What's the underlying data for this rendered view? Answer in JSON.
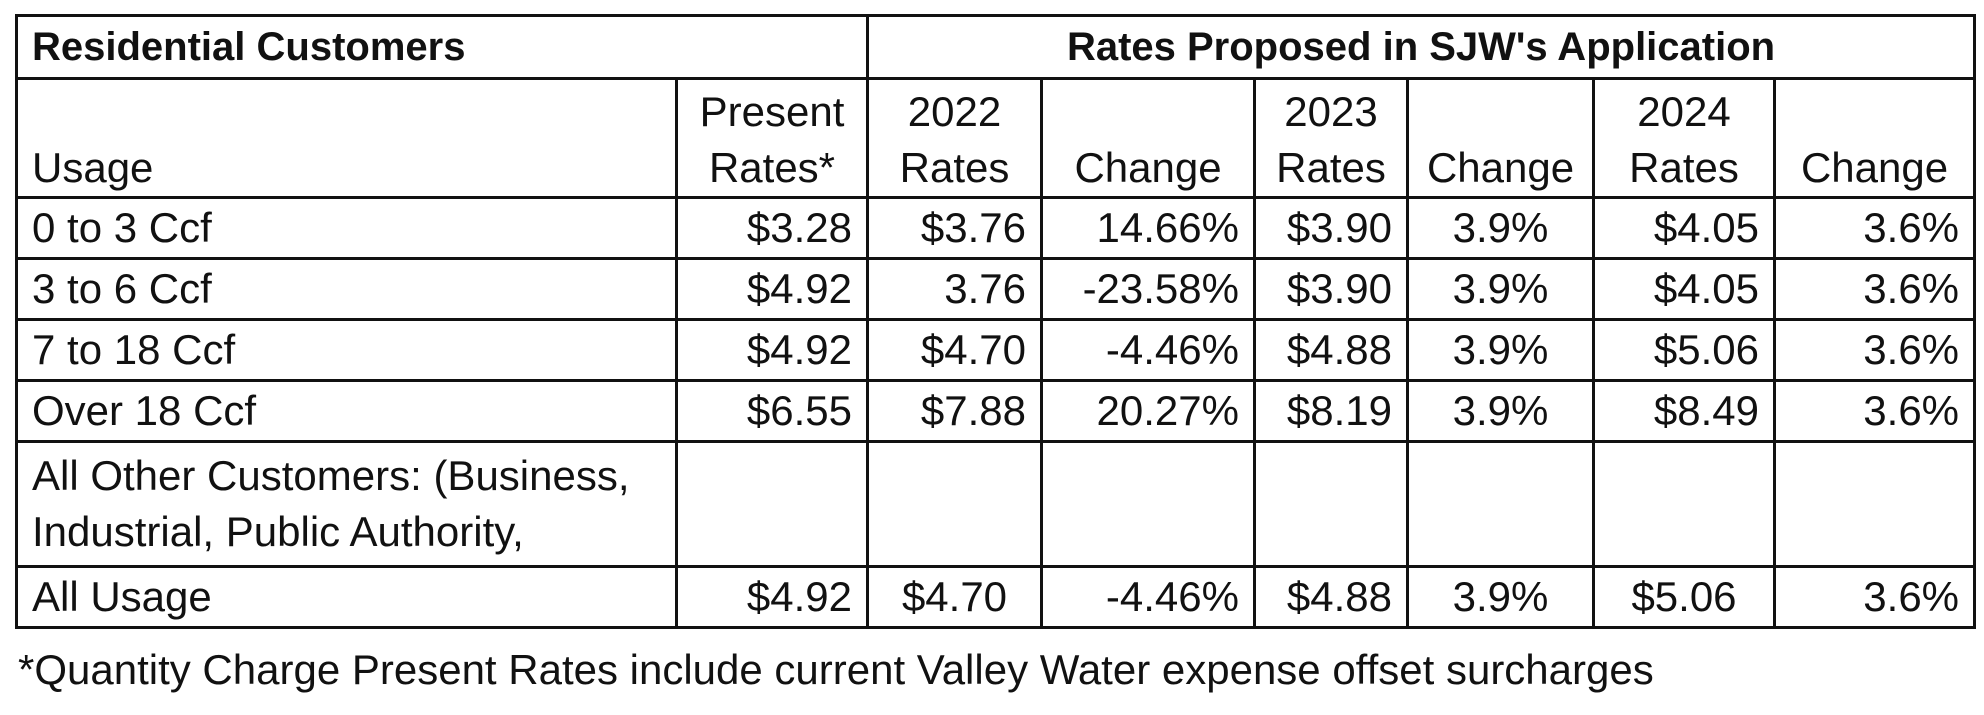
{
  "table": {
    "header": {
      "left": "Residential Customers",
      "right": "Rates Proposed in SJW's Application"
    },
    "columns": {
      "usage": "Usage",
      "present": [
        "Present",
        "Rates*"
      ],
      "y2022": [
        "2022",
        "Rates"
      ],
      "change1": "Change",
      "y2023": [
        "2023",
        "Rates"
      ],
      "change2": "Change",
      "y2024": [
        "2024",
        "Rates"
      ],
      "change3": "Change"
    },
    "rows": [
      {
        "usage": "0 to 3 Ccf",
        "present": "$3.28",
        "r2022": "$3.76",
        "c2022": "14.66%",
        "r2023": "$3.90",
        "c2023": "3.9%",
        "r2024": "$4.05",
        "c2024": "3.6%"
      },
      {
        "usage": "3 to 6 Ccf",
        "present": "$4.92",
        "r2022": "3.76",
        "c2022": "-23.58%",
        "r2023": "$3.90",
        "c2023": "3.9%",
        "r2024": "$4.05",
        "c2024": "3.6%"
      },
      {
        "usage": "7 to 18 Ccf",
        "present": "$4.92",
        "r2022": "$4.70",
        "c2022": "-4.46%",
        "r2023": "$4.88",
        "c2023": "3.9%",
        "r2024": "$5.06",
        "c2024": "3.6%"
      },
      {
        "usage": "Over 18 Ccf",
        "present": "$6.55",
        "r2022": "$7.88",
        "c2022": "20.27%",
        "r2023": "$8.19",
        "c2023": "3.9%",
        "r2024": "$8.49",
        "c2024": "3.6%"
      }
    ],
    "other_customers": [
      "All Other Customers: (Business,",
      "Industrial, Public Authority,"
    ],
    "all_usage": {
      "usage": "All Usage",
      "present": "$4.92",
      "r2022": "$4.70",
      "c2022": "-4.46%",
      "r2023": "$4.88",
      "c2023": "3.9%",
      "r2024": "$5.06",
      "c2024": "3.6%"
    }
  },
  "footnote": "*Quantity Charge Present Rates include current Valley Water expense offset surcharges"
}
